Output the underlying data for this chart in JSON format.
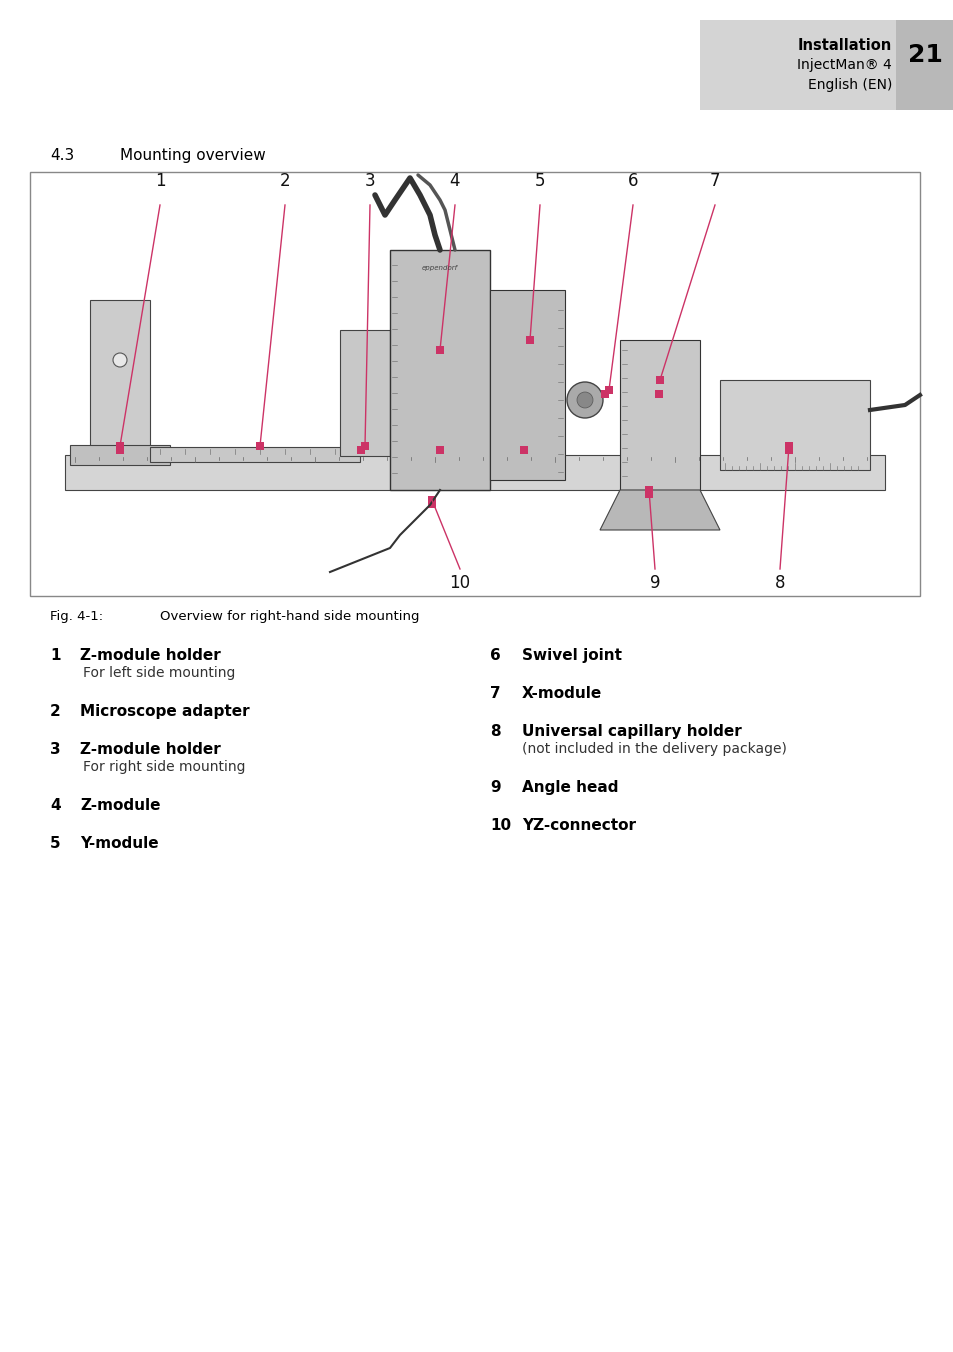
{
  "page_bg": "#ffffff",
  "header_bg": "#d4d4d4",
  "page_num_bg": "#b8b8b8",
  "header_bold": "Installation",
  "header_line2": "InjectMan® 4",
  "header_line3": "English (EN)",
  "page_number": "21",
  "section_title_num": "4.3",
  "section_title_text": "Mounting overview",
  "fig_caption_label": "Fig. 4-1:",
  "fig_caption_text": "Overview for right-hand side mounting",
  "items_left": [
    {
      "num": "1",
      "bold": "Z-module holder",
      "sub": "For left side mounting"
    },
    {
      "num": "2",
      "bold": "Microscope adapter",
      "sub": ""
    },
    {
      "num": "3",
      "bold": "Z-module holder",
      "sub": "For right side mounting"
    },
    {
      "num": "4",
      "bold": "Z-module",
      "sub": ""
    },
    {
      "num": "5",
      "bold": "Y-module",
      "sub": ""
    }
  ],
  "items_right": [
    {
      "num": "6",
      "bold": "Swivel joint",
      "sub": ""
    },
    {
      "num": "7",
      "bold": "X-module",
      "sub": ""
    },
    {
      "num": "8",
      "bold": "Universal capillary holder",
      "sub": "(not included in the delivery package)"
    },
    {
      "num": "9",
      "bold": "Angle head",
      "sub": ""
    },
    {
      "num": "10",
      "bold": "YZ-connector",
      "sub": ""
    }
  ],
  "accent_color": "#cc3366",
  "diagram_border": "#888888"
}
